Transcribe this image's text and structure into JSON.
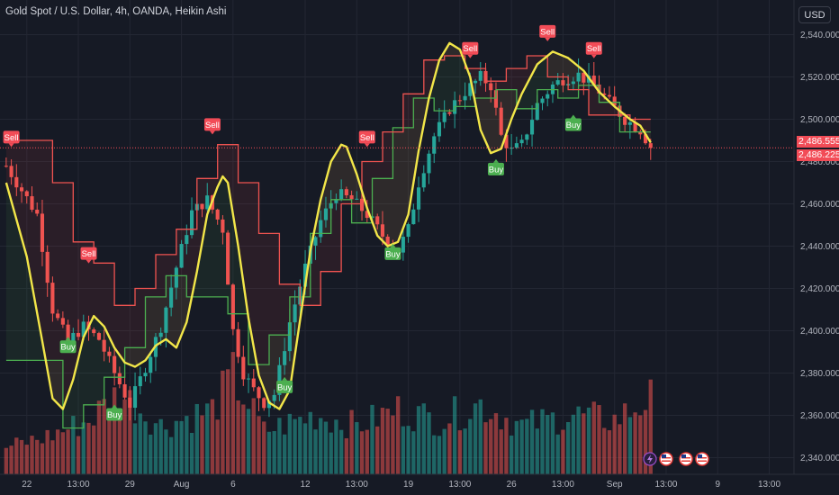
{
  "header": {
    "title": "Gold Spot / U.S. Dollar, 4h, OANDA, Heikin Ashi",
    "currency_button": "USD"
  },
  "price_labels": {
    "upper": "2,486.555",
    "lower": "2,486.225"
  },
  "colors": {
    "background": "#161a25",
    "up": "#26a69a",
    "down": "#ef5350",
    "trend_line": "#f2e649",
    "trail_up": "#4caf50",
    "trail_down": "#ef5350",
    "buy_badge": "#4caf50",
    "sell_badge": "#f24c57",
    "grid": "#232733",
    "axis_text": "#b2b5be"
  },
  "chart_data": {
    "type": "candlestick",
    "instrument": "Gold Spot / U.S. Dollar",
    "timeframe": "4h",
    "source": "OANDA",
    "candle_style": "Heikin Ashi",
    "ylim": [
      2333,
      2550
    ],
    "y_ticks": [
      2340,
      2360,
      2380,
      2400,
      2420,
      2440,
      2460,
      2480,
      2500,
      2520,
      2540
    ],
    "y_tick_labels": [
      "2,340.000",
      "2,360.000",
      "2,380.000",
      "2,400.000",
      "2,420.000",
      "2,440.000",
      "2,460.000",
      "2,480.000",
      "2,500.000",
      "2,520.000",
      "2,540.000"
    ],
    "x_ticks": [
      {
        "i": 4,
        "label": "22"
      },
      {
        "i": 14,
        "label": "13:00"
      },
      {
        "i": 24,
        "label": "29"
      },
      {
        "i": 34,
        "label": "Aug"
      },
      {
        "i": 44,
        "label": "6"
      },
      {
        "i": 58,
        "label": "12"
      },
      {
        "i": 68,
        "label": "13:00"
      },
      {
        "i": 78,
        "label": "19"
      },
      {
        "i": 88,
        "label": "13:00"
      },
      {
        "i": 98,
        "label": "26"
      },
      {
        "i": 108,
        "label": "13:00"
      },
      {
        "i": 118,
        "label": "Sep"
      },
      {
        "i": 128,
        "label": "13:00"
      },
      {
        "i": 138,
        "label": "9"
      },
      {
        "i": 148,
        "label": "13:00"
      }
    ],
    "x_count": 154,
    "last_index": 125,
    "anchors": [
      [
        0,
        2478
      ],
      [
        6,
        2455
      ],
      [
        9,
        2410
      ],
      [
        12,
        2395
      ],
      [
        15,
        2402
      ],
      [
        18,
        2396
      ],
      [
        21,
        2380
      ],
      [
        24,
        2365
      ],
      [
        27,
        2383
      ],
      [
        30,
        2402
      ],
      [
        33,
        2430
      ],
      [
        36,
        2456
      ],
      [
        39,
        2462
      ],
      [
        42,
        2448
      ],
      [
        44,
        2400
      ],
      [
        46,
        2380
      ],
      [
        48,
        2372
      ],
      [
        50,
        2366
      ],
      [
        52,
        2370
      ],
      [
        55,
        2404
      ],
      [
        58,
        2430
      ],
      [
        61,
        2452
      ],
      [
        64,
        2465
      ],
      [
        67,
        2462
      ],
      [
        70,
        2455
      ],
      [
        73,
        2445
      ],
      [
        76,
        2438
      ],
      [
        78,
        2448
      ],
      [
        80,
        2470
      ],
      [
        83,
        2492
      ],
      [
        86,
        2505
      ],
      [
        89,
        2513
      ],
      [
        92,
        2520
      ],
      [
        94,
        2516
      ],
      [
        96,
        2492
      ],
      [
        98,
        2485
      ],
      [
        100,
        2488
      ],
      [
        103,
        2507
      ],
      [
        106,
        2516
      ],
      [
        108,
        2519
      ],
      [
        111,
        2521
      ],
      [
        114,
        2516
      ],
      [
        117,
        2508
      ],
      [
        120,
        2500
      ],
      [
        123,
        2495
      ],
      [
        125,
        2487
      ]
    ],
    "trend_line": [
      [
        0,
        2470
      ],
      [
        4,
        2435
      ],
      [
        7,
        2395
      ],
      [
        9,
        2368
      ],
      [
        11,
        2363
      ],
      [
        13,
        2377
      ],
      [
        15,
        2397
      ],
      [
        17,
        2407
      ],
      [
        19,
        2402
      ],
      [
        21,
        2392
      ],
      [
        23,
        2385
      ],
      [
        25,
        2383
      ],
      [
        27,
        2386
      ],
      [
        29,
        2393
      ],
      [
        31,
        2396
      ],
      [
        33,
        2392
      ],
      [
        35,
        2404
      ],
      [
        37,
        2428
      ],
      [
        39,
        2455
      ],
      [
        41,
        2468
      ],
      [
        42,
        2473
      ],
      [
        43,
        2470
      ],
      [
        45,
        2440
      ],
      [
        47,
        2406
      ],
      [
        49,
        2379
      ],
      [
        51,
        2366
      ],
      [
        53,
        2363
      ],
      [
        55,
        2372
      ],
      [
        57,
        2405
      ],
      [
        59,
        2438
      ],
      [
        61,
        2462
      ],
      [
        63,
        2480
      ],
      [
        65,
        2488
      ],
      [
        66,
        2487
      ],
      [
        68,
        2474
      ],
      [
        70,
        2458
      ],
      [
        72,
        2445
      ],
      [
        74,
        2440
      ],
      [
        76,
        2442
      ],
      [
        78,
        2455
      ],
      [
        80,
        2485
      ],
      [
        82,
        2510
      ],
      [
        84,
        2528
      ],
      [
        86,
        2536
      ],
      [
        88,
        2533
      ],
      [
        90,
        2520
      ],
      [
        92,
        2495
      ],
      [
        94,
        2484
      ],
      [
        96,
        2486
      ],
      [
        98,
        2500
      ],
      [
        100,
        2512
      ],
      [
        103,
        2526
      ],
      [
        106,
        2532
      ],
      [
        109,
        2529
      ],
      [
        112,
        2523
      ],
      [
        115,
        2513
      ],
      [
        118,
        2506
      ],
      [
        121,
        2500
      ],
      [
        123,
        2497
      ],
      [
        125,
        2489
      ]
    ],
    "trail_up": [
      [
        0,
        2386
      ],
      [
        11,
        2386
      ],
      [
        11,
        2354
      ],
      [
        15,
        2354
      ],
      [
        15,
        2365
      ],
      [
        19,
        2365
      ],
      [
        19,
        2378
      ],
      [
        23,
        2378
      ],
      [
        23,
        2392
      ],
      [
        27,
        2392
      ],
      [
        27,
        2416
      ],
      [
        31,
        2416
      ],
      [
        31,
        2426
      ],
      [
        35,
        2426
      ],
      [
        35,
        2416
      ],
      [
        43,
        2416
      ],
      [
        43,
        2408
      ],
      [
        47,
        2408
      ],
      [
        47,
        2384
      ],
      [
        51,
        2384
      ],
      [
        51,
        2398
      ],
      [
        55,
        2398
      ],
      [
        55,
        2416
      ],
      [
        59,
        2416
      ],
      [
        59,
        2446
      ],
      [
        63,
        2446
      ],
      [
        63,
        2462
      ],
      [
        67,
        2462
      ],
      [
        67,
        2451
      ],
      [
        71,
        2451
      ],
      [
        71,
        2472
      ],
      [
        75,
        2472
      ],
      [
        75,
        2496
      ],
      [
        79,
        2496
      ],
      [
        79,
        2510
      ],
      [
        83,
        2510
      ],
      [
        83,
        2504
      ],
      [
        87,
        2504
      ],
      [
        87,
        2506
      ],
      [
        91,
        2506
      ],
      [
        91,
        2510
      ],
      [
        95,
        2510
      ],
      [
        95,
        2514
      ],
      [
        99,
        2514
      ],
      [
        99,
        2505
      ],
      [
        103,
        2505
      ],
      [
        103,
        2514
      ],
      [
        107,
        2514
      ],
      [
        107,
        2510
      ],
      [
        111,
        2510
      ],
      [
        111,
        2516
      ],
      [
        115,
        2516
      ],
      [
        115,
        2508
      ],
      [
        119,
        2508
      ],
      [
        119,
        2494
      ],
      [
        125,
        2494
      ]
    ],
    "trail_down": [
      [
        0,
        2490
      ],
      [
        9,
        2490
      ],
      [
        9,
        2470
      ],
      [
        13,
        2470
      ],
      [
        13,
        2442
      ],
      [
        17,
        2442
      ],
      [
        17,
        2432
      ],
      [
        21,
        2432
      ],
      [
        21,
        2412
      ],
      [
        25,
        2412
      ],
      [
        25,
        2420
      ],
      [
        29,
        2420
      ],
      [
        29,
        2436
      ],
      [
        33,
        2436
      ],
      [
        33,
        2448
      ],
      [
        37,
        2448
      ],
      [
        37,
        2472
      ],
      [
        41,
        2472
      ],
      [
        41,
        2488
      ],
      [
        45,
        2488
      ],
      [
        45,
        2470
      ],
      [
        49,
        2470
      ],
      [
        49,
        2446
      ],
      [
        53,
        2446
      ],
      [
        53,
        2422
      ],
      [
        57,
        2422
      ],
      [
        57,
        2412
      ],
      [
        61,
        2412
      ],
      [
        61,
        2428
      ],
      [
        65,
        2428
      ],
      [
        65,
        2460
      ],
      [
        69,
        2460
      ],
      [
        69,
        2480
      ],
      [
        73,
        2480
      ],
      [
        73,
        2494
      ],
      [
        77,
        2494
      ],
      [
        77,
        2512
      ],
      [
        81,
        2512
      ],
      [
        81,
        2528
      ],
      [
        85,
        2528
      ],
      [
        85,
        2530
      ],
      [
        89,
        2530
      ],
      [
        89,
        2524
      ],
      [
        93,
        2524
      ],
      [
        93,
        2518
      ],
      [
        97,
        2518
      ],
      [
        97,
        2524
      ],
      [
        101,
        2524
      ],
      [
        101,
        2530
      ],
      [
        105,
        2530
      ],
      [
        105,
        2520
      ],
      [
        109,
        2520
      ],
      [
        109,
        2514
      ],
      [
        113,
        2514
      ],
      [
        113,
        2502
      ],
      [
        117,
        2502
      ],
      [
        117,
        2502
      ],
      [
        121,
        2502
      ],
      [
        121,
        2500
      ],
      [
        125,
        2500
      ]
    ],
    "signals": [
      {
        "type": "sell",
        "i": 1,
        "price": 2486,
        "label": "Sell"
      },
      {
        "type": "sell",
        "i": 16,
        "price": 2431,
        "label": "Sell"
      },
      {
        "type": "buy",
        "i": 12,
        "price": 2398,
        "label": "Buy"
      },
      {
        "type": "buy",
        "i": 21,
        "price": 2366,
        "label": "Buy"
      },
      {
        "type": "sell",
        "i": 40,
        "price": 2492,
        "label": "Sell"
      },
      {
        "type": "buy",
        "i": 54,
        "price": 2379,
        "label": "Buy"
      },
      {
        "type": "sell",
        "i": 70,
        "price": 2486,
        "label": "Sell"
      },
      {
        "type": "buy",
        "i": 75,
        "price": 2442,
        "label": "Buy"
      },
      {
        "type": "sell",
        "i": 90,
        "price": 2528,
        "label": "Sell"
      },
      {
        "type": "buy",
        "i": 95,
        "price": 2482,
        "label": "Buy"
      },
      {
        "type": "sell",
        "i": 105,
        "price": 2536,
        "label": "Sell"
      },
      {
        "type": "buy",
        "i": 110,
        "price": 2503,
        "label": "Buy"
      },
      {
        "type": "sell",
        "i": 114,
        "price": 2528,
        "label": "Sell"
      }
    ],
    "volume_profile": [
      [
        0,
        0.25
      ],
      [
        8,
        0.35
      ],
      [
        16,
        0.5
      ],
      [
        22,
        0.75
      ],
      [
        30,
        0.45
      ],
      [
        40,
        0.6
      ],
      [
        44,
        0.9
      ],
      [
        50,
        0.4
      ],
      [
        60,
        0.55
      ],
      [
        68,
        0.45
      ],
      [
        76,
        0.6
      ],
      [
        84,
        0.5
      ],
      [
        92,
        0.65
      ],
      [
        100,
        0.45
      ],
      [
        110,
        0.55
      ],
      [
        118,
        0.5
      ],
      [
        125,
        0.7
      ]
    ],
    "current_price_line": 2486.5,
    "event_icons": [
      "lightning-icon",
      "us-flag-icon",
      "us-flag-icon",
      "us-flag-icon"
    ]
  }
}
